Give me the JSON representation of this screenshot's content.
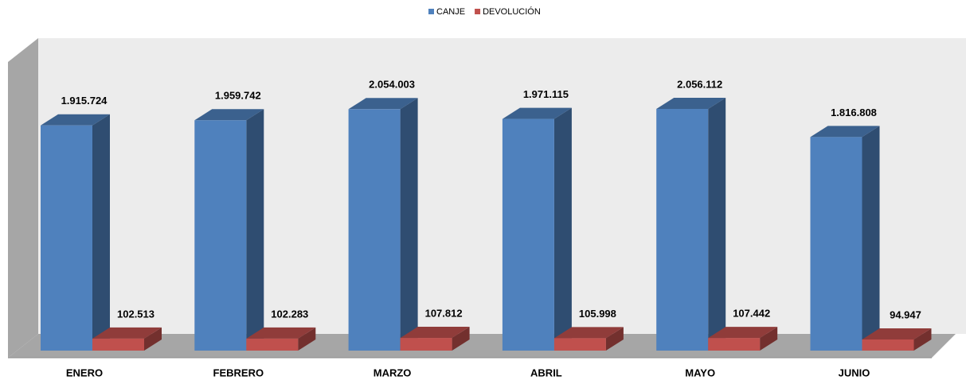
{
  "chart_data": {
    "type": "bar3d",
    "categories": [
      "ENERO",
      "FEBRERO",
      "MARZO",
      "ABRIL",
      "MAYO",
      "JUNIO"
    ],
    "series": [
      {
        "name": "CANJE",
        "color": "#4f81bd",
        "values": [
          1915724,
          1959742,
          2054003,
          1971115,
          2056112,
          1816808
        ],
        "value_labels": [
          "1.915.724",
          "1.959.742",
          "2.054.003",
          "1.971.115",
          "2.056.112",
          "1.816.808"
        ]
      },
      {
        "name": "DEVOLUCIÓN",
        "color": "#c0504d",
        "values": [
          102513,
          102283,
          107812,
          105998,
          107442,
          94947
        ],
        "value_labels": [
          "102.513",
          "102.283",
          "107.812",
          "105.998",
          "107.442",
          "94.947"
        ]
      }
    ],
    "legend": "top"
  }
}
